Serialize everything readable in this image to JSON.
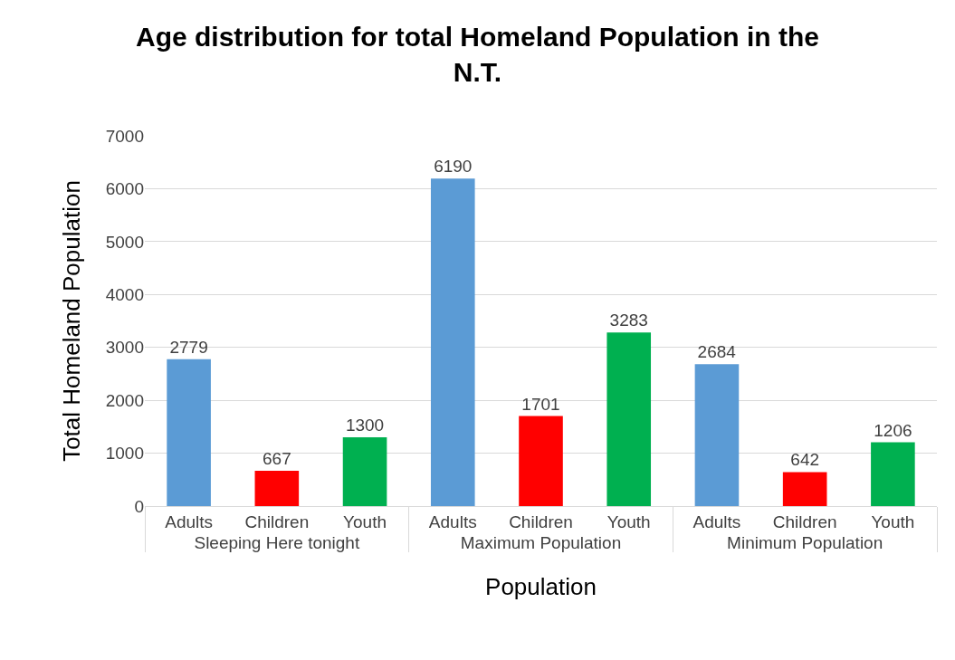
{
  "chart_data": {
    "type": "bar",
    "title": "Age distribution for total Homeland Population in the N.T.",
    "xlabel": "Population",
    "ylabel": "Total Homeland Population",
    "categories": [
      "Adults",
      "Children",
      "Youth",
      "Adults",
      "Children",
      "Youth",
      "Adults",
      "Children",
      "Youth"
    ],
    "annotations": [
      "Sleeping Here tonight",
      "Maximum Population",
      "Minimum Population"
    ],
    "values": [
      2779,
      667,
      1300,
      6190,
      1701,
      3283,
      2684,
      642,
      1206
    ],
    "colors": [
      "#5b9bd5",
      "#ff0000",
      "#00b050",
      "#5b9bd5",
      "#ff0000",
      "#00b050",
      "#5b9bd5",
      "#ff0000",
      "#00b050"
    ],
    "ylim": [
      0,
      7000
    ],
    "yticks": [
      0,
      1000,
      2000,
      3000,
      4000,
      5000,
      6000,
      7000
    ],
    "grid": "y",
    "data_labels": true
  }
}
